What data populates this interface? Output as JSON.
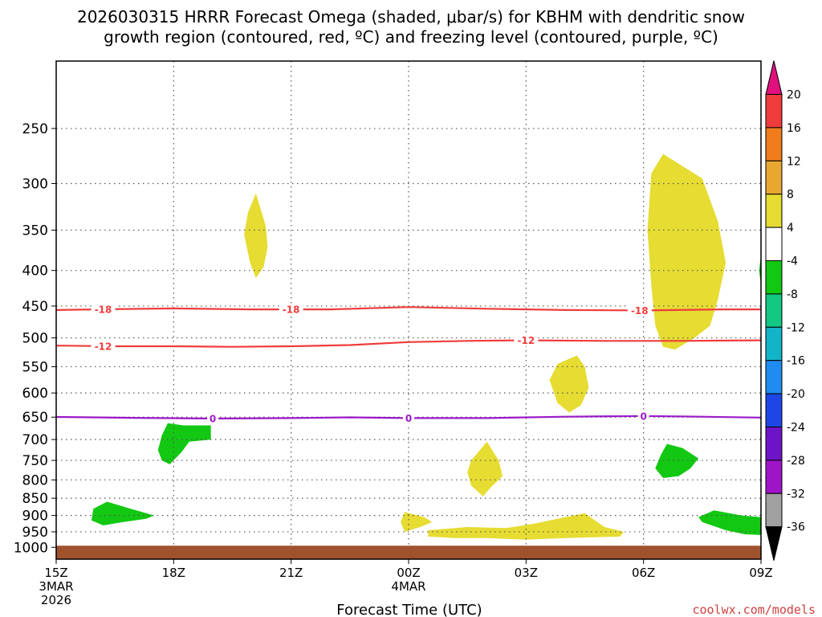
{
  "chart_data": {
    "type": "contour",
    "title_line1": "2026030315 HRRR Forecast Omega (shaded, μbar/s) for KBHM with dendritic snow",
    "title_line2": "growth region (contoured, red, ºC) and freezing level (contoured, purple, ºC)",
    "xlabel": "Forecast Time (UTC)",
    "credit": "coolwx.com/models",
    "xlim": [
      0,
      18
    ],
    "ylim": [
      1040,
      200
    ],
    "x_ticks": [
      {
        "t": 0,
        "label": "15Z"
      },
      {
        "t": 3,
        "label": "18Z"
      },
      {
        "t": 6,
        "label": "21Z"
      },
      {
        "t": 9,
        "label": "00Z"
      },
      {
        "t": 12,
        "label": "03Z"
      },
      {
        "t": 15,
        "label": "06Z"
      },
      {
        "t": 18,
        "label": "09Z"
      }
    ],
    "x_date_labels": [
      {
        "t": 0,
        "lines": [
          "3MAR",
          "2026"
        ]
      },
      {
        "t": 9,
        "lines": [
          "4MAR"
        ]
      }
    ],
    "y_ticks": [
      250,
      300,
      350,
      400,
      450,
      500,
      550,
      600,
      650,
      700,
      750,
      800,
      850,
      900,
      950,
      1000
    ],
    "colorbar": {
      "labels": [
        "20",
        "16",
        "12",
        "8",
        "4",
        "-4",
        "-8",
        "-12",
        "-16",
        "-20",
        "-24",
        "-28",
        "-32",
        "-36"
      ],
      "top_color": "#e0107c",
      "bottom_color": "#000000",
      "colors": [
        "#f03c3c",
        "#f07c1c",
        "#e8a830",
        "#e6dc32",
        "#ffffff",
        "#12c812",
        "#12c882",
        "#12b4c8",
        "#1e8cf0",
        "#1e46e6",
        "#6e14c8",
        "#a014c8",
        "#a0a0a0"
      ]
    },
    "ground": {
      "top_hpa": 1000,
      "color": "#a0522d"
    },
    "contours": [
      {
        "name": "-18",
        "color": "#f03c3c",
        "points": [
          [
            0,
            456
          ],
          [
            1,
            455
          ],
          [
            3,
            453.5
          ],
          [
            5,
            455
          ],
          [
            7,
            455
          ],
          [
            9,
            451.5
          ],
          [
            11,
            454
          ],
          [
            13,
            456
          ],
          [
            15,
            456.5
          ],
          [
            17,
            455
          ],
          [
            18,
            455
          ]
        ],
        "labels": [
          1.2,
          6,
          14.9
        ]
      },
      {
        "name": "-12",
        "color": "#f03c3c",
        "points": [
          [
            0,
            513
          ],
          [
            1.5,
            514
          ],
          [
            3,
            514
          ],
          [
            4.5,
            515
          ],
          [
            6,
            514
          ],
          [
            7.5,
            512
          ],
          [
            9,
            507
          ],
          [
            10.5,
            505
          ],
          [
            12,
            504
          ],
          [
            14,
            505
          ],
          [
            16,
            505
          ],
          [
            18,
            504
          ]
        ],
        "labels": [
          1.2,
          12
        ]
      },
      {
        "name": "0",
        "color": "#9b19c8",
        "points": [
          [
            0,
            649.5
          ],
          [
            2,
            651.5
          ],
          [
            4,
            653
          ],
          [
            6,
            652
          ],
          [
            7.5,
            650.5
          ],
          [
            9,
            652
          ],
          [
            11,
            652
          ],
          [
            13,
            649
          ],
          [
            15,
            647.5
          ],
          [
            16.5,
            649
          ],
          [
            18,
            651
          ]
        ],
        "labels": [
          4,
          9,
          15
        ]
      }
    ],
    "omega_regions": [
      {
        "value": "4 to 8",
        "color": "#e6dc32",
        "points": [
          [
            5.1,
            310
          ],
          [
            5.35,
            345
          ],
          [
            5.4,
            370
          ],
          [
            5.3,
            395
          ],
          [
            5.1,
            410
          ],
          [
            4.95,
            390
          ],
          [
            4.8,
            355
          ],
          [
            4.9,
            330
          ]
        ]
      },
      {
        "value": "4 to 8",
        "color": "#e6dc32",
        "points": [
          [
            15.5,
            272
          ],
          [
            16.5,
            295
          ],
          [
            16.9,
            340
          ],
          [
            17.1,
            390
          ],
          [
            16.9,
            440
          ],
          [
            16.7,
            480
          ],
          [
            16.3,
            500
          ],
          [
            15.8,
            520
          ],
          [
            15.5,
            515
          ],
          [
            15.3,
            480
          ],
          [
            15.2,
            420
          ],
          [
            15.1,
            350
          ],
          [
            15.2,
            290
          ]
        ]
      },
      {
        "value": "4 to 8",
        "color": "#e6dc32",
        "points": [
          [
            13.3,
            530
          ],
          [
            13.5,
            550
          ],
          [
            13.6,
            590
          ],
          [
            13.4,
            625
          ],
          [
            13.1,
            640
          ],
          [
            12.8,
            620
          ],
          [
            12.6,
            575
          ],
          [
            12.8,
            545
          ]
        ]
      },
      {
        "value": "4 to 8",
        "color": "#e6dc32",
        "points": [
          [
            11.0,
            705
          ],
          [
            11.3,
            750
          ],
          [
            11.4,
            790
          ],
          [
            11.1,
            820
          ],
          [
            10.9,
            845
          ],
          [
            10.6,
            815
          ],
          [
            10.5,
            780
          ],
          [
            10.6,
            750
          ]
        ]
      },
      {
        "value": "4 to 8",
        "color": "#e6dc32",
        "points": [
          [
            8.9,
            890
          ],
          [
            9.4,
            905
          ],
          [
            9.6,
            920
          ],
          [
            9.3,
            935
          ],
          [
            8.9,
            950
          ],
          [
            8.8,
            920
          ]
        ]
      },
      {
        "value": "4 to 8",
        "color": "#e6dc32",
        "points": [
          [
            9.5,
            945
          ],
          [
            10.5,
            935
          ],
          [
            11.5,
            938
          ],
          [
            12.2,
            925
          ],
          [
            13,
            905
          ],
          [
            13.5,
            893
          ],
          [
            14,
            935
          ],
          [
            14.5,
            950
          ],
          [
            14.4,
            965
          ],
          [
            13,
            970
          ],
          [
            12,
            975
          ],
          [
            11,
            970
          ],
          [
            10.2,
            970
          ],
          [
            9.5,
            965
          ]
        ]
      },
      {
        "value": "-4 to -8",
        "color": "#12c812",
        "points": [
          [
            2.85,
            663
          ],
          [
            3.25,
            668
          ],
          [
            3.95,
            668
          ],
          [
            3.95,
            700
          ],
          [
            3.4,
            705
          ],
          [
            3.2,
            730
          ],
          [
            2.9,
            760
          ],
          [
            2.7,
            750
          ],
          [
            2.6,
            725
          ],
          [
            2.7,
            690
          ]
        ]
      },
      {
        "value": "-4 to -8",
        "color": "#12c812",
        "points": [
          [
            1.3,
            860
          ],
          [
            1.9,
            880
          ],
          [
            2.5,
            900
          ],
          [
            2.3,
            910
          ],
          [
            1.7,
            920
          ],
          [
            1.2,
            930
          ],
          [
            0.9,
            915
          ],
          [
            0.95,
            880
          ]
        ]
      },
      {
        "value": "-4 to -8",
        "color": "#12c812",
        "points": [
          [
            15.6,
            710
          ],
          [
            16.0,
            720
          ],
          [
            16.4,
            745
          ],
          [
            16.2,
            770
          ],
          [
            15.9,
            790
          ],
          [
            15.5,
            795
          ],
          [
            15.3,
            770
          ],
          [
            15.45,
            735
          ]
        ]
      },
      {
        "value": "-4 to -8",
        "color": "#12c812",
        "points": [
          [
            16.8,
            885
          ],
          [
            17.5,
            900
          ],
          [
            18,
            905
          ],
          [
            18,
            960
          ],
          [
            17.6,
            958
          ],
          [
            17.1,
            945
          ],
          [
            16.5,
            920
          ],
          [
            16.4,
            905
          ]
        ]
      },
      {
        "value": "-4 to -8",
        "color": "#12c812",
        "points": [
          [
            18,
            380
          ],
          [
            18,
            420
          ],
          [
            17.95,
            400
          ]
        ]
      }
    ]
  }
}
